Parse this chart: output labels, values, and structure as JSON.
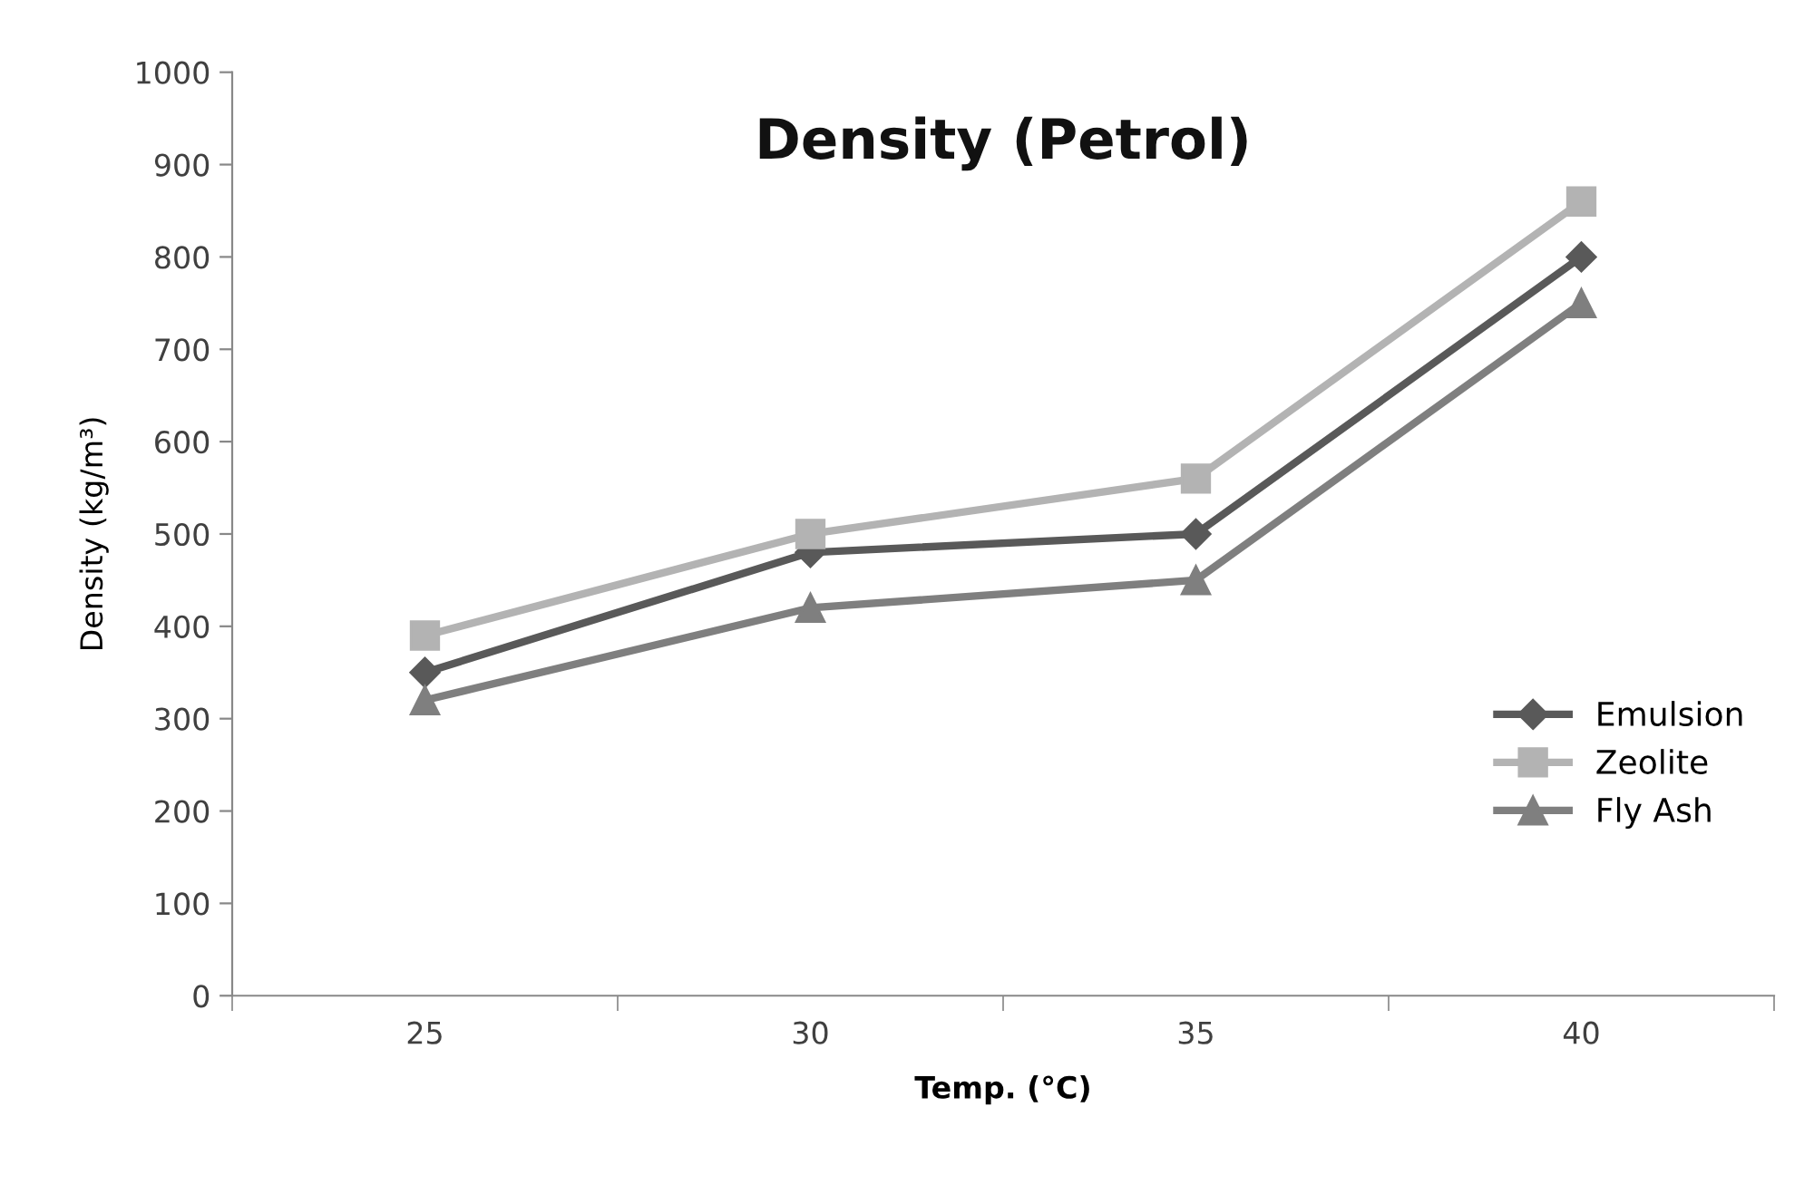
{
  "chart_data": {
    "type": "line",
    "title": "Density (Petrol)",
    "xlabel": "Temp. (°C)",
    "ylabel": "Density (kg/m³)",
    "categories": [
      "25",
      "30",
      "35",
      "40"
    ],
    "series": [
      {
        "name": "Emulsion",
        "color": "#595959",
        "marker": "diamond",
        "values": [
          350,
          480,
          500,
          800
        ]
      },
      {
        "name": "Zeolite",
        "color": "#b3b3b3",
        "marker": "square",
        "values": [
          390,
          500,
          560,
          860
        ]
      },
      {
        "name": "Fly Ash",
        "color": "#7f7f7f",
        "marker": "triangle",
        "values": [
          320,
          420,
          450,
          750
        ]
      }
    ],
    "ylim": [
      0,
      1000
    ],
    "yticks": [
      0,
      100,
      200,
      300,
      400,
      500,
      600,
      700,
      800,
      900,
      1000
    ],
    "grid": false,
    "legend": "right",
    "line_style": "solid"
  }
}
